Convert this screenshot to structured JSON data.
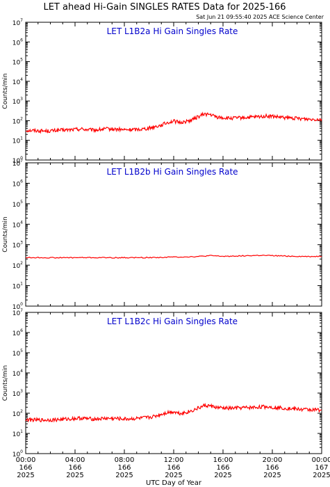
{
  "header": {
    "title": "LET ahead Hi-Gain SINGLES RATES Data for 2025-166",
    "timestamp": "Sat Jun 21 09:55:40 2025 ACE Science Center"
  },
  "colors": {
    "series": "#ff0000",
    "panel_title": "#0000cc",
    "axis": "#000000"
  },
  "chart_data": [
    {
      "type": "line",
      "title": "LET L1B2a Hi Gain Singles Rate",
      "ylabel": "Counts/min",
      "yscale": "log",
      "ylim": [
        1,
        10000000
      ],
      "xlim": [
        0,
        24
      ],
      "series": [
        {
          "x": [
            0,
            0.5,
            1,
            1.5,
            2,
            2.5,
            3,
            3.5,
            4,
            4.5,
            5,
            5.5,
            6,
            6.5,
            7,
            7.5,
            8,
            8.5,
            9,
            9.5,
            10,
            10.5,
            11,
            11.5,
            12,
            12.5,
            13,
            13.5,
            14,
            14.5,
            15,
            15.5,
            16,
            16.5,
            17,
            17.5,
            18,
            18.5,
            19,
            19.5,
            20,
            20.5,
            21,
            21.5,
            22,
            22.5,
            23,
            23.5,
            24
          ],
          "values": [
            32,
            32,
            31,
            30,
            30,
            32,
            33,
            34,
            36,
            38,
            35,
            33,
            35,
            38,
            37,
            36,
            34,
            35,
            36,
            38,
            42,
            50,
            60,
            80,
            95,
            80,
            90,
            110,
            160,
            220,
            200,
            150,
            140,
            130,
            135,
            140,
            145,
            150,
            160,
            170,
            165,
            150,
            140,
            135,
            130,
            125,
            120,
            120,
            118
          ]
        }
      ]
    },
    {
      "type": "line",
      "title": "LET L1B2b Hi Gain Singles Rate",
      "ylabel": "Counts/min",
      "yscale": "log",
      "ylim": [
        1,
        10000000
      ],
      "xlim": [
        0,
        24
      ],
      "series": [
        {
          "x": [
            0,
            1,
            2,
            3,
            4,
            5,
            6,
            7,
            8,
            9,
            10,
            11,
            12,
            13,
            14,
            15,
            16,
            17,
            18,
            19,
            20,
            21,
            22,
            23,
            24
          ],
          "values": [
            235,
            233,
            232,
            232,
            233,
            234,
            233,
            232,
            232,
            233,
            235,
            240,
            250,
            255,
            265,
            290,
            270,
            280,
            290,
            300,
            290,
            280,
            270,
            265,
            270
          ]
        }
      ]
    },
    {
      "type": "line",
      "title": "LET L1B2c Hi Gain Singles Rate",
      "ylabel": "Counts/min",
      "yscale": "log",
      "ylim": [
        1,
        10000000
      ],
      "xlim": [
        0,
        24
      ],
      "series": [
        {
          "x": [
            0,
            0.5,
            1,
            1.5,
            2,
            2.5,
            3,
            3.5,
            4,
            4.5,
            5,
            5.5,
            6,
            6.5,
            7,
            7.5,
            8,
            8.5,
            9,
            9.5,
            10,
            10.5,
            11,
            11.5,
            12,
            12.5,
            13,
            13.5,
            14,
            14.5,
            15,
            15.5,
            16,
            16.5,
            17,
            17.5,
            18,
            18.5,
            19,
            19.5,
            20,
            20.5,
            21,
            21.5,
            22,
            22.5,
            23,
            23.5,
            24
          ],
          "values": [
            48,
            47,
            46,
            46,
            47,
            48,
            50,
            52,
            55,
            57,
            54,
            52,
            53,
            56,
            55,
            54,
            52,
            53,
            55,
            58,
            62,
            72,
            90,
            110,
            120,
            100,
            110,
            135,
            180,
            240,
            230,
            190,
            180,
            175,
            180,
            185,
            190,
            195,
            205,
            210,
            200,
            190,
            180,
            170,
            160,
            155,
            150,
            148,
            145
          ]
        }
      ]
    }
  ],
  "x_axis": {
    "label": "UTC Day of Year",
    "ticks": [
      {
        "time": "00:00",
        "day": "166",
        "year": "2025",
        "hour": 0
      },
      {
        "time": "04:00",
        "day": "166",
        "year": "2025",
        "hour": 4
      },
      {
        "time": "08:00",
        "day": "166",
        "year": "2025",
        "hour": 8
      },
      {
        "time": "12:00",
        "day": "166",
        "year": "2025",
        "hour": 12
      },
      {
        "time": "16:00",
        "day": "166",
        "year": "2025",
        "hour": 16
      },
      {
        "time": "20:00",
        "day": "166",
        "year": "2025",
        "hour": 20
      },
      {
        "time": "00:00",
        "day": "167",
        "year": "2025",
        "hour": 24
      }
    ]
  },
  "y_axis": {
    "ticks": [
      {
        "base": "10",
        "exp": "0",
        "value": 1
      },
      {
        "base": "10",
        "exp": "1",
        "value": 10
      },
      {
        "base": "10",
        "exp": "2",
        "value": 100
      },
      {
        "base": "10",
        "exp": "3",
        "value": 1000
      },
      {
        "base": "10",
        "exp": "4",
        "value": 10000
      },
      {
        "base": "10",
        "exp": "5",
        "value": 100000
      },
      {
        "base": "10",
        "exp": "6",
        "value": 1000000
      },
      {
        "base": "10",
        "exp": "7",
        "value": 10000000
      }
    ]
  }
}
